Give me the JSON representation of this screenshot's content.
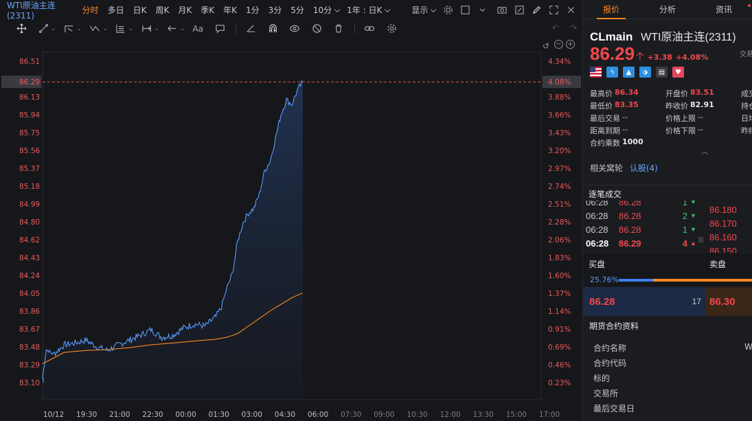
{
  "chart_header": {
    "title": "WTI原油主连(2311)",
    "timeframes": [
      {
        "label": "分时",
        "active": true
      },
      {
        "label": "多日"
      },
      {
        "label": "日K"
      },
      {
        "label": "周K"
      },
      {
        "label": "月K"
      },
      {
        "label": "季K"
      },
      {
        "label": "年K"
      },
      {
        "label": "1分"
      },
      {
        "label": "3分"
      },
      {
        "label": "5分"
      },
      {
        "label": "10分"
      },
      {
        "label": "1年 : 日K"
      },
      {
        "label": "显示"
      }
    ]
  },
  "drawing_tools": [
    "move-icon",
    "line-tool-icon",
    "channel-tool-icon",
    "wave-tool-icon",
    "fib-tool-icon",
    "measure-tool-icon",
    "arrow-tool-icon",
    "text-tool-icon",
    "note-tool-icon",
    "ruler-icon",
    "magnet-icon",
    "eye-icon",
    "hide-icon",
    "trash-icon",
    "link-icon",
    "gear-icon"
  ],
  "chart_data": {
    "type": "line",
    "y_ticks": [
      "86.51",
      "86.29",
      "86.13",
      "85.94",
      "85.75",
      "85.56",
      "85.37",
      "85.18",
      "84.99",
      "84.80",
      "84.62",
      "84.43",
      "84.24",
      "84.05",
      "83.86",
      "83.67",
      "83.48",
      "83.29",
      "83.10"
    ],
    "pct_ticks": [
      "4.34%",
      "4.08%",
      "3.88%",
      "3.66%",
      "3.43%",
      "3.20%",
      "2.97%",
      "2.74%",
      "2.51%",
      "2.28%",
      "2.06%",
      "1.83%",
      "1.60%",
      "1.37%",
      "1.14%",
      "0.91%",
      "0.69%",
      "0.46%",
      "0.23%"
    ],
    "x_ticks": [
      "10/12",
      "19:30",
      "21:00",
      "22:30",
      "00:00",
      "01:30",
      "03:00",
      "04:30",
      "06:00",
      "07:30",
      "09:00",
      "10:30",
      "12:00",
      "13:30",
      "15:00",
      "17:00"
    ],
    "last_price_label": "86.29",
    "last_pct_label": "4.08%",
    "ylim": [
      83.0,
      86.6
    ],
    "series": [
      {
        "color": "#5a9cff",
        "x": [
          "18:00",
          "18:10",
          "18:30",
          "19:00",
          "19:30",
          "20:00",
          "20:30",
          "21:00",
          "21:30",
          "22:00",
          "22:30",
          "23:00",
          "23:30",
          "00:00",
          "00:30",
          "01:00",
          "01:30",
          "02:00",
          "02:15",
          "02:30",
          "02:45",
          "03:00",
          "03:15",
          "03:30",
          "03:45",
          "04:00",
          "04:15",
          "04:30",
          "04:45",
          "05:00",
          "05:15",
          "05:30",
          "05:45",
          "06:00"
        ],
        "values": [
          83.15,
          83.45,
          83.4,
          83.5,
          83.52,
          83.55,
          83.48,
          83.44,
          83.5,
          83.55,
          83.6,
          83.66,
          83.58,
          83.6,
          83.68,
          83.72,
          83.7,
          83.8,
          83.9,
          84.1,
          84.25,
          84.6,
          84.8,
          84.9,
          84.95,
          85.1,
          85.35,
          85.45,
          85.7,
          85.95,
          86.1,
          86.05,
          86.2,
          86.29
        ]
      },
      {
        "color": "#ff8a1f",
        "x": [
          "18:00",
          "19:00",
          "20:00",
          "21:00",
          "22:00",
          "23:00",
          "00:00",
          "01:00",
          "01:30",
          "02:00",
          "02:30",
          "03:00",
          "03:30",
          "04:00",
          "04:30",
          "05:00",
          "05:30",
          "06:00"
        ],
        "values": [
          83.3,
          83.42,
          83.44,
          83.45,
          83.47,
          83.5,
          83.52,
          83.54,
          83.55,
          83.56,
          83.58,
          83.62,
          83.7,
          83.78,
          83.86,
          83.93,
          84.0,
          84.05
        ]
      }
    ]
  },
  "quote_panel": {
    "tabs": [
      {
        "label": "报价",
        "active": true
      },
      {
        "label": "分析"
      },
      {
        "label": "资讯"
      }
    ],
    "symbol": "CLmain",
    "name": "WTI原油主连(2311)",
    "price": "86.29",
    "change": "+3.38",
    "change_pct": "+4.08%",
    "trade_label": "交易",
    "flags": [
      {
        "icon": "us-flag-icon",
        "color": "#3b5fb5"
      },
      {
        "icon": "lightning-icon",
        "color": "#2f8fe0"
      },
      {
        "icon": "chart-icon",
        "color": "#2f8fe0"
      },
      {
        "icon": "tag-icon",
        "color": "#2f8fe0"
      },
      {
        "icon": "doc-icon",
        "color": "#4a4b50"
      },
      {
        "icon": "heart-icon",
        "color": "#e8475f"
      }
    ],
    "stats": [
      [
        {
          "k": "最高价",
          "v": "86.34",
          "c": "red"
        },
        {
          "k": "开盘价",
          "v": "83.51",
          "c": "red"
        },
        {
          "k": "成交",
          "v": ""
        }
      ],
      [
        {
          "k": "最低价",
          "v": "83.35",
          "c": "red"
        },
        {
          "k": "昨收价",
          "v": "82.91",
          "c": "white"
        },
        {
          "k": "持仓",
          "v": ""
        }
      ],
      [
        {
          "k": "最后交易",
          "v": "--",
          "c": "gray"
        },
        {
          "k": "价格上限",
          "v": "--",
          "c": "gray"
        },
        {
          "k": "日均",
          "v": ""
        }
      ],
      [
        {
          "k": "距离到期",
          "v": "--",
          "c": "gray"
        },
        {
          "k": "价格下限",
          "v": "--",
          "c": "gray"
        },
        {
          "k": "昨结",
          "v": ""
        }
      ],
      [
        {
          "k": "合约乘数",
          "v": "1000",
          "c": "white"
        }
      ]
    ],
    "related_label": "相关窝轮",
    "related_value": "认股(4)",
    "ticks_title": "逐笔成交",
    "ticks": [
      {
        "time": "06:28",
        "price": "86.28",
        "qty": "1",
        "dir": "down"
      },
      {
        "time": "06:28",
        "price": "86.28",
        "qty": "2",
        "dir": "down"
      },
      {
        "time": "06:28",
        "price": "86.28",
        "qty": "1",
        "dir": "down"
      },
      {
        "time": "06:28",
        "price": "86.29",
        "qty": "4",
        "dir": "up",
        "bold": true
      }
    ],
    "ladder": [
      "86.180",
      "86.170",
      "86.160",
      "86.150"
    ],
    "bid_label": "买盘",
    "ask_label": "卖盘",
    "bid_ratio": "25.76%",
    "bid_ratio_value": 0.2576,
    "bid_price": "86.28",
    "bid_size": "17",
    "ask_price": "86.30",
    "info_title": "期货合约资料",
    "info_rows": [
      {
        "k": "合约名称",
        "v": "W"
      },
      {
        "k": "合约代码",
        "v": ""
      },
      {
        "k": "标的",
        "v": ""
      },
      {
        "k": "交易所",
        "v": ""
      },
      {
        "k": "最后交易日",
        "v": ""
      }
    ]
  }
}
